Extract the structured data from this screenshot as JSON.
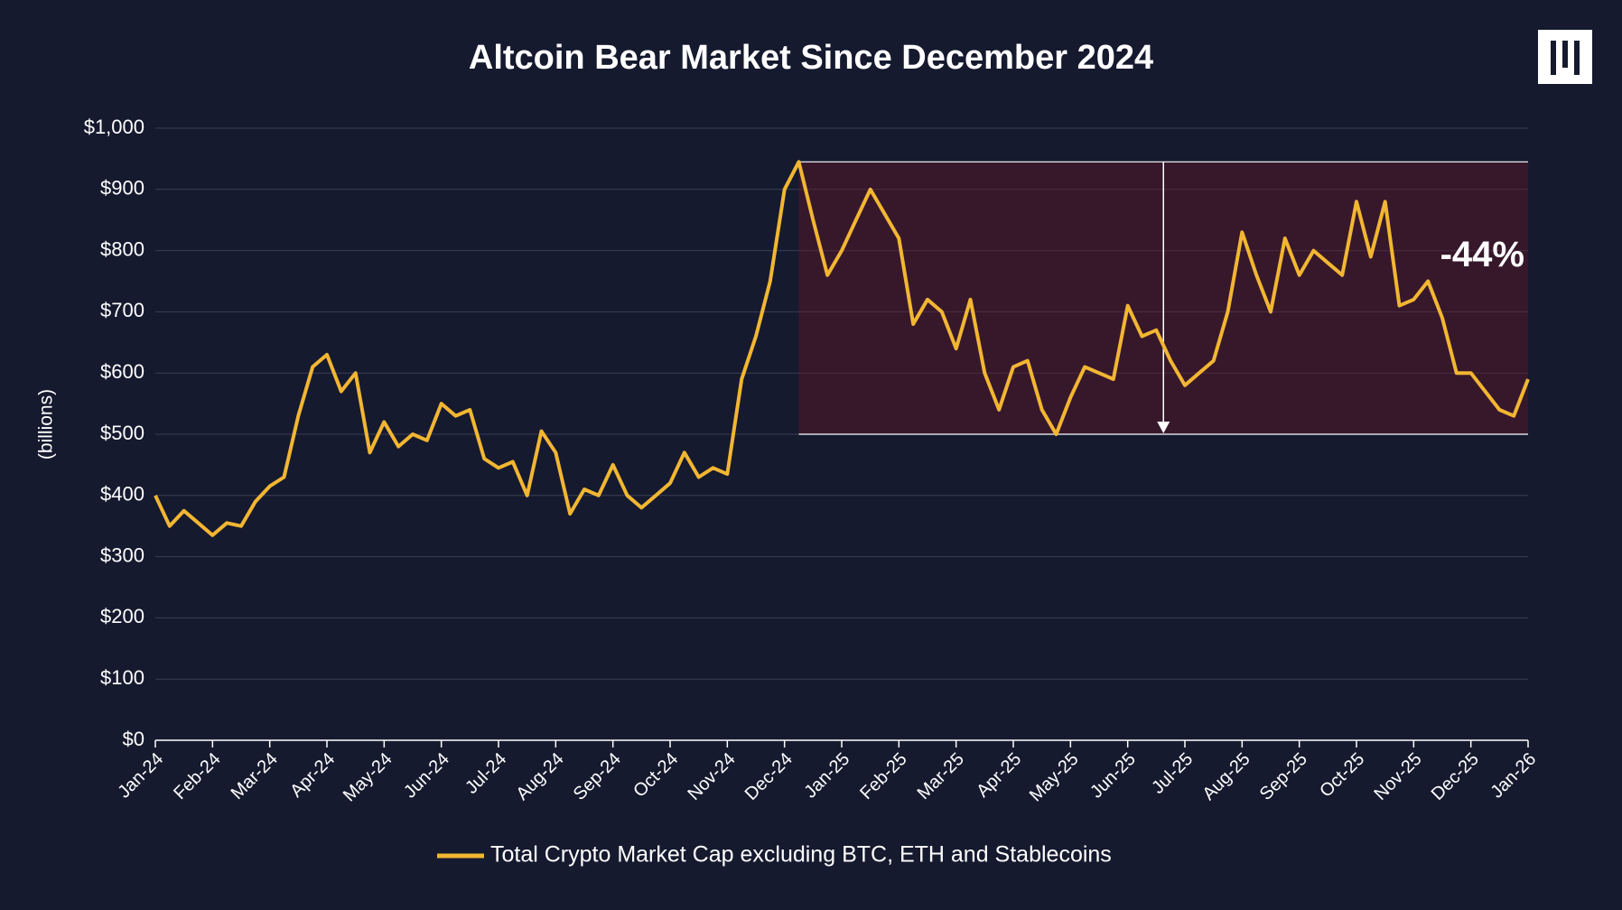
{
  "chart_data": {
    "type": "line",
    "title": "Altcoin Bear Market Since December 2024",
    "y_label": "(billions)",
    "annotation": "-44%",
    "categories": [
      "Jan-24",
      null,
      null,
      null,
      "Feb-24",
      null,
      null,
      null,
      "Mar-24",
      null,
      null,
      null,
      "Apr-24",
      null,
      null,
      null,
      "May-24",
      null,
      null,
      null,
      "Jun-24",
      null,
      null,
      null,
      "Jul-24",
      null,
      null,
      null,
      "Aug-24",
      null,
      null,
      null,
      "Sep-24",
      null,
      null,
      null,
      "Oct-24",
      null,
      null,
      null,
      "Nov-24",
      null,
      null,
      null,
      "Dec-24",
      null,
      null,
      null,
      "Jan-25",
      null,
      null,
      null,
      "Feb-25",
      null,
      null,
      null,
      "Mar-25",
      null,
      null,
      null,
      "Apr-25",
      null,
      null,
      null,
      "May-25",
      null,
      null,
      null,
      "Jun-25",
      null,
      null,
      null,
      "Jul-25",
      null,
      null,
      null,
      "Aug-25",
      null,
      null,
      null,
      "Sep-25",
      null,
      null,
      null,
      "Oct-25",
      null,
      null,
      null,
      "Nov-25",
      null,
      null,
      null,
      "Dec-25",
      null,
      null,
      null,
      "Jan-26"
    ],
    "series": [
      {
        "name": "Total Crypto Market Cap excluding BTC, ETH and Stablecoins",
        "color": "#f2b632",
        "values": [
          400,
          350,
          375,
          355,
          335,
          355,
          350,
          390,
          415,
          430,
          530,
          610,
          630,
          570,
          600,
          470,
          520,
          480,
          500,
          490,
          550,
          530,
          540,
          460,
          445,
          455,
          400,
          505,
          470,
          370,
          410,
          400,
          450,
          400,
          380,
          400,
          420,
          470,
          430,
          445,
          435,
          590,
          660,
          750,
          900,
          945,
          850,
          760,
          800,
          850,
          900,
          860,
          820,
          680,
          720,
          700,
          640,
          720,
          600,
          540,
          610,
          620,
          540,
          500,
          560,
          610,
          600,
          590,
          710,
          660,
          670,
          620,
          580,
          600,
          620,
          700,
          830,
          760,
          700,
          820,
          760,
          800,
          780,
          760,
          880,
          790,
          880,
          710,
          720,
          750,
          690,
          600,
          600,
          570,
          540,
          530,
          590
        ]
      }
    ],
    "ylim": [
      0,
      1000
    ],
    "yticks": [
      {
        "value": 0,
        "label": "$0"
      },
      {
        "value": 100,
        "label": "$100"
      },
      {
        "value": 200,
        "label": "$200"
      },
      {
        "value": 300,
        "label": "$300"
      },
      {
        "value": 400,
        "label": "$400"
      },
      {
        "value": 500,
        "label": "$500"
      },
      {
        "value": 600,
        "label": "$600"
      },
      {
        "value": 700,
        "label": "$700"
      },
      {
        "value": 800,
        "label": "$800"
      },
      {
        "value": 900,
        "label": "$900"
      },
      {
        "value": 1000,
        "label": "$1,000"
      }
    ],
    "grid": true
  }
}
